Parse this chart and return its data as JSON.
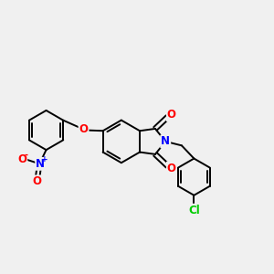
{
  "bg_color": "#f0f0f0",
  "bond_color": "#000000",
  "bond_width": 1.4,
  "atom_colors": {
    "O": "#ff0000",
    "N_blue": "#0000ff",
    "N_red": "#ff0000",
    "Cl": "#00cc00",
    "C": "#000000"
  },
  "font_size_atom": 8.5
}
